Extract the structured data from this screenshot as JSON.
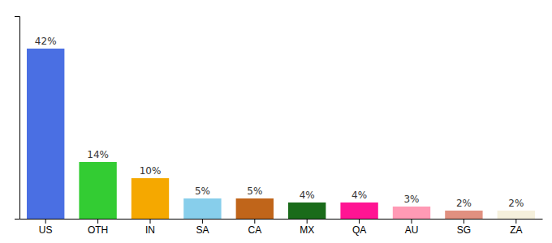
{
  "chart_data": {
    "type": "bar",
    "categories": [
      "US",
      "OTH",
      "IN",
      "SA",
      "CA",
      "MX",
      "QA",
      "AU",
      "SG",
      "ZA"
    ],
    "values": [
      42,
      14,
      10,
      5,
      5,
      4,
      4,
      3,
      2,
      2
    ],
    "value_labels": [
      "42%",
      "14%",
      "10%",
      "5%",
      "5%",
      "4%",
      "4%",
      "3%",
      "2%",
      "2%"
    ],
    "data_labels": true,
    "colors": [
      "#4a6fe3",
      "#33cc33",
      "#f5a800",
      "#87ceeb",
      "#c0651a",
      "#1a6b1a",
      "#ff1493",
      "#ff9ab5",
      "#e09080",
      "#f5f0dc"
    ],
    "ylim": [
      0,
      50
    ],
    "yticks": [],
    "tick_labels": "x"
  }
}
